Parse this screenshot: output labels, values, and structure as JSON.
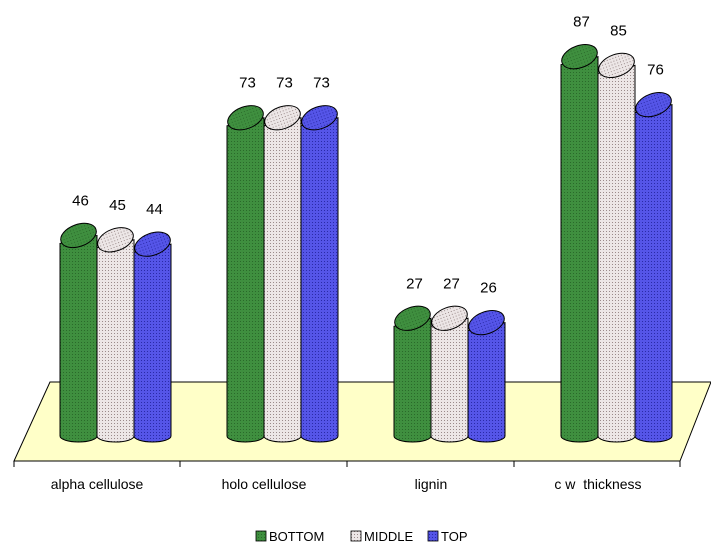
{
  "chart_data": {
    "type": "bar",
    "categories": [
      "alpha cellulose",
      "holo cellulose",
      "lignin",
      "c w  thickness"
    ],
    "series": [
      {
        "name": "BOTTOM",
        "values": [
          46,
          73,
          27,
          87
        ],
        "color": "#3f8f3f"
      },
      {
        "name": "MIDDLE",
        "values": [
          45,
          73,
          27,
          85
        ],
        "color": "#e6dcdc"
      },
      {
        "name": "TOP",
        "values": [
          44,
          73,
          26,
          76
        ],
        "color": "#4b4be0"
      }
    ],
    "title": "",
    "xlabel": "",
    "ylabel": "",
    "ylim": [
      0,
      100
    ],
    "grid": false,
    "legend_position": "bottom",
    "floor_color": "#ffffc8",
    "data_labels": true
  }
}
